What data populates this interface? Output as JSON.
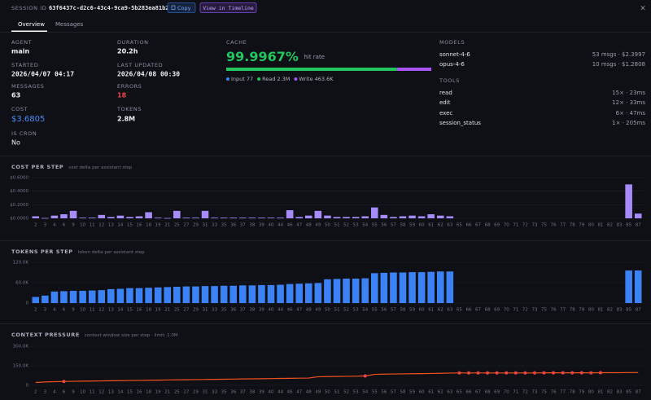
{
  "header": {
    "session_label": "SESSION ID",
    "session_id": "63f6437c-d2c6-43c4-9ca9-5b283ea81b25",
    "copy": "Copy",
    "timeline": "View in Timeline",
    "close": "×"
  },
  "tabs": [
    "Overview",
    "Messages"
  ],
  "stats": [
    {
      "label": "AGENT",
      "value": "main"
    },
    {
      "label": "STARTED",
      "value": "2026/04/07 04:17"
    },
    {
      "label": "MESSAGES",
      "value": "63"
    },
    {
      "label": "COST",
      "value": "$3.6805"
    },
    {
      "label": "IS CRON",
      "value": "No"
    },
    {
      "label": "DURATION",
      "value": "20.2h"
    },
    {
      "label": "LAST UPDATED",
      "value": "2026/04/08 00:30"
    },
    {
      "label": "ERRORS",
      "value": "18"
    },
    {
      "label": "TOKENS",
      "value": "2.8M"
    }
  ],
  "cache": {
    "label": "CACHE",
    "rate": "99.9967%",
    "rate_label": "hit rate",
    "segments": [
      {
        "name": "Input",
        "value": 77,
        "value_label": "77",
        "color": "#3b82f6"
      },
      {
        "name": "Read",
        "value": 2300000,
        "value_label": "2.3M",
        "color": "#22c55e"
      },
      {
        "name": "Write",
        "value": 463600,
        "value_label": "463.6K",
        "color": "#a855f7"
      }
    ]
  },
  "models": {
    "label": "MODELS",
    "items": [
      {
        "name": "sonnet-4-6",
        "detail": "53 msgs · $2.3997"
      },
      {
        "name": "opus-4-6",
        "detail": "10 msgs · $1.2808"
      }
    ]
  },
  "tools": {
    "label": "TOOLS",
    "items": [
      {
        "name": "read",
        "detail": "15× · 23ms"
      },
      {
        "name": "edit",
        "detail": "12× · 33ms"
      },
      {
        "name": "exec",
        "detail": "6× · 47ms"
      },
      {
        "name": "session_status",
        "detail": "1× · 205ms"
      }
    ]
  },
  "chart_data": [
    {
      "type": "bar",
      "title": "COST PER STEP",
      "subtitle": "cost delta per assistant step",
      "color": "#a78bfa",
      "categories": [
        2,
        3,
        4,
        6,
        9,
        10,
        11,
        12,
        13,
        14,
        15,
        16,
        18,
        19,
        21,
        25,
        27,
        29,
        31,
        33,
        35,
        36,
        37,
        38,
        39,
        40,
        44,
        46,
        47,
        48,
        49,
        50,
        51,
        52,
        53,
        54,
        55,
        56,
        57,
        58,
        59,
        60,
        61,
        62,
        63,
        65,
        66,
        67,
        68,
        69,
        70,
        71,
        72,
        73,
        75,
        76,
        77,
        78,
        79,
        80,
        81,
        82,
        83,
        85,
        87
      ],
      "values": [
        0.03,
        0.005,
        0.04,
        0.06,
        0.11,
        0.01,
        0.01,
        0.05,
        0.02,
        0.04,
        0.02,
        0.03,
        0.09,
        0.01,
        0.005,
        0.11,
        0.01,
        0.01,
        0.11,
        0.01,
        0.01,
        0.01,
        0.01,
        0.01,
        0.01,
        0.01,
        0.01,
        0.12,
        0.02,
        0.04,
        0.11,
        0.04,
        0.02,
        0.02,
        0.02,
        0.03,
        0.16,
        0.05,
        0.02,
        0.03,
        0.04,
        0.03,
        0.06,
        0.04,
        0.03,
        null,
        null,
        null,
        null,
        null,
        null,
        null,
        null,
        null,
        null,
        null,
        null,
        null,
        null,
        null,
        null,
        null,
        null,
        0.5,
        0.07
      ],
      "ylim": [
        0,
        0.6
      ],
      "yticks": [
        {
          "value": 0,
          "label": "$0.0000"
        },
        {
          "value": 0.2,
          "label": "$0.2000"
        },
        {
          "value": 0.4,
          "label": "$0.4000"
        },
        {
          "value": 0.6,
          "label": "$0.6000"
        }
      ],
      "grid": true
    },
    {
      "type": "bar",
      "title": "TOKENS PER STEP",
      "subtitle": "token delta per assistant step",
      "color": "#3b82f6",
      "categories": [
        2,
        3,
        4,
        6,
        9,
        10,
        11,
        12,
        13,
        14,
        15,
        16,
        18,
        19,
        21,
        25,
        27,
        29,
        31,
        33,
        35,
        36,
        37,
        38,
        39,
        40,
        44,
        46,
        47,
        48,
        49,
        50,
        51,
        52,
        53,
        54,
        55,
        56,
        57,
        58,
        59,
        60,
        61,
        62,
        63,
        65,
        66,
        67,
        68,
        69,
        70,
        71,
        72,
        73,
        75,
        76,
        77,
        78,
        79,
        80,
        81,
        82,
        83,
        85,
        87
      ],
      "values": [
        18000,
        22000,
        34000,
        35000,
        36000,
        36000,
        37000,
        38000,
        41000,
        42000,
        44000,
        44000,
        45000,
        46000,
        47000,
        48000,
        49000,
        49000,
        50000,
        50000,
        51000,
        51000,
        52000,
        52000,
        53000,
        53000,
        54000,
        56000,
        57000,
        58000,
        59000,
        70000,
        71000,
        72000,
        72000,
        73000,
        88000,
        89000,
        90000,
        90000,
        91000,
        91000,
        92000,
        93000,
        93000,
        null,
        null,
        null,
        null,
        null,
        null,
        null,
        null,
        null,
        null,
        null,
        null,
        null,
        null,
        null,
        null,
        null,
        null,
        96000,
        96000
      ],
      "ylim": [
        0,
        120000
      ],
      "yticks": [
        0,
        {
          "value": 60000,
          "label": "60.0K"
        },
        {
          "value": 120000,
          "label": "120.0K"
        }
      ],
      "grid": true
    },
    {
      "type": "line",
      "title": "CONTEXT PRESSURE",
      "subtitle": "context window size per step · limit: 1.0M",
      "color": "#f4511e",
      "marker_color": "#ef4444",
      "categories": [
        2,
        3,
        4,
        6,
        9,
        10,
        11,
        12,
        13,
        14,
        15,
        16,
        18,
        19,
        21,
        25,
        27,
        29,
        31,
        33,
        35,
        36,
        37,
        38,
        39,
        40,
        44,
        46,
        47,
        48,
        49,
        50,
        51,
        52,
        53,
        54,
        55,
        56,
        57,
        58,
        59,
        60,
        61,
        62,
        63,
        65,
        66,
        67,
        68,
        69,
        70,
        71,
        72,
        73,
        75,
        76,
        77,
        78,
        79,
        80,
        81,
        82,
        83,
        85,
        87
      ],
      "values": [
        22000,
        26000,
        28000,
        30000,
        31000,
        32000,
        33000,
        34000,
        35000,
        36000,
        37000,
        38000,
        39000,
        40000,
        41000,
        42000,
        43000,
        44000,
        45000,
        46000,
        47000,
        48000,
        49000,
        50000,
        51000,
        52000,
        53000,
        54000,
        55000,
        56000,
        66000,
        67000,
        68000,
        69000,
        70000,
        72000,
        84000,
        86000,
        87000,
        88000,
        89000,
        90000,
        91000,
        92000,
        94000,
        95000,
        95000,
        95000,
        95000,
        95000,
        95000,
        95000,
        95000,
        95000,
        96000,
        96000,
        96000,
        96000,
        96000,
        96000,
        97000,
        97000,
        97000,
        98000,
        98000
      ],
      "error_points": [
        6,
        54,
        65,
        66,
        67,
        68,
        69,
        70,
        71,
        72,
        73,
        75,
        76,
        77,
        78,
        79,
        80,
        81
      ],
      "ylim": [
        0,
        300000
      ],
      "yticks": [
        0,
        {
          "value": 150000,
          "label": "150.0K"
        },
        {
          "value": 300000,
          "label": "300.0K"
        }
      ],
      "grid": true
    }
  ]
}
